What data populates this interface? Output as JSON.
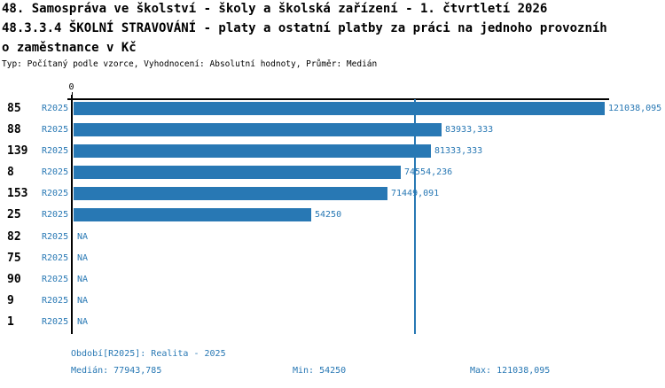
{
  "header": {
    "title_line1": "48. Samospráva ve školství - školy a školská zařízení - 1. čtvrtletí 2026",
    "title_line2": "48.3.3.4 ŠKOLNÍ STRAVOVÁNÍ - platy a ostatní platby za práci na jednoho provozníh",
    "title_line3": "o zaměstnance v Kč",
    "meta_line": "Typ: Počítaný podle vzorce, Vyhodnocení: Absolutní hodnoty, Průměr: Medián"
  },
  "chart_data": {
    "type": "bar",
    "orientation": "horizontal",
    "series_name": "R2025",
    "x_axis": {
      "origin_tick_label": "0",
      "min": 0,
      "max": 121038.095
    },
    "median_value": 77943.785,
    "rows": [
      {
        "group": "85",
        "period": "R2025",
        "value": 121038.095,
        "label": "121038,095"
      },
      {
        "group": "88",
        "period": "R2025",
        "value": 83933.333,
        "label": "83933,333"
      },
      {
        "group": "139",
        "period": "R2025",
        "value": 81333.333,
        "label": "81333,333"
      },
      {
        "group": "8",
        "period": "R2025",
        "value": 74554.236,
        "label": "74554,236"
      },
      {
        "group": "153",
        "period": "R2025",
        "value": 71449.091,
        "label": "71449,091"
      },
      {
        "group": "25",
        "period": "R2025",
        "value": 54250,
        "label": "54250"
      },
      {
        "group": "82",
        "period": "R2025",
        "value": null,
        "label": "NA"
      },
      {
        "group": "75",
        "period": "R2025",
        "value": null,
        "label": "NA"
      },
      {
        "group": "90",
        "period": "R2025",
        "value": null,
        "label": "NA"
      },
      {
        "group": "9",
        "period": "R2025",
        "value": null,
        "label": "NA"
      },
      {
        "group": "1",
        "period": "R2025",
        "value": null,
        "label": "NA"
      }
    ],
    "stats": {
      "median": 77943.785,
      "min": 54250,
      "max": 121038.095
    },
    "colors": {
      "bar": "#2878b4",
      "text_blue": "#2878b4",
      "axis": "#000000",
      "background": "#ffffff"
    }
  },
  "footer": {
    "period_info": "Období[R2025]: Realita - 2025",
    "median_text": "Medián: 77943,785",
    "min_text": "Min: 54250",
    "max_text": "Max: 121038,095"
  }
}
